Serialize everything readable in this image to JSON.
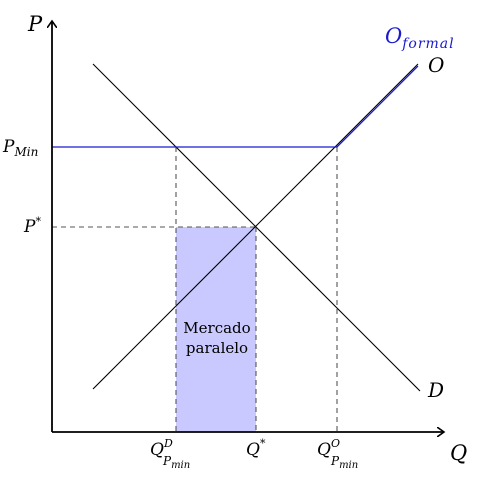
{
  "colors": {
    "axis": "#000000",
    "curve": "#000000",
    "formal_supply": "#1a1ad0",
    "guide": "#555555",
    "shaded": "#c9c9ff"
  },
  "axes": {
    "y_label": "P",
    "x_label": "Q"
  },
  "y_ticks": {
    "p_min": {
      "main": "P",
      "sub": "Min"
    },
    "p_star": {
      "main": "P",
      "sup": "*"
    }
  },
  "x_ticks": {
    "q_demand_min": {
      "main": "Q",
      "sup": "D",
      "sub_main": "P",
      "sub_sub": "min"
    },
    "q_star": {
      "main": "Q",
      "sup": "*"
    },
    "q_supply_min": {
      "main": "Q",
      "sup": "O",
      "sub_main": "P",
      "sub_sub": "min"
    }
  },
  "curves": {
    "formal_supply": {
      "main": "O",
      "sub": "formal"
    },
    "supply": "O",
    "demand": "D"
  },
  "region": {
    "line1": "Mercado",
    "line2": "paralelo"
  }
}
